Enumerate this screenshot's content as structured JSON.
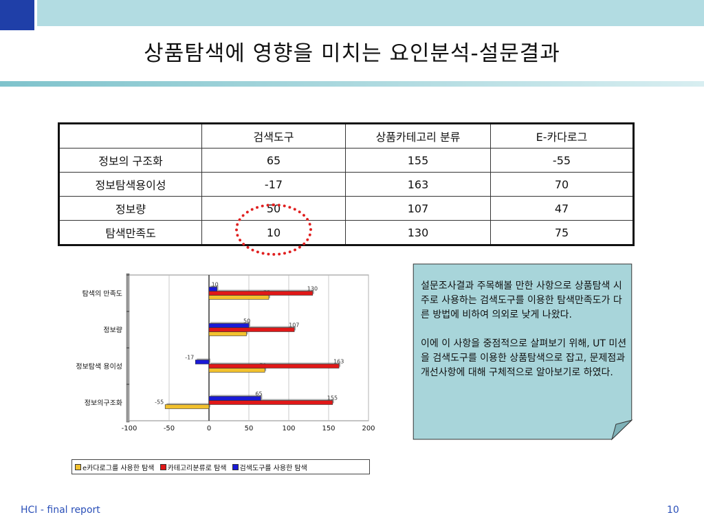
{
  "title": "상품탐색에 영향을 미치는 요인분석-설문결과",
  "table": {
    "headers": [
      "",
      "검색도구",
      "상품카테고리 분류",
      "E-카다로그"
    ],
    "rows": [
      [
        "정보의 구조화",
        "65",
        "155",
        "-55"
      ],
      [
        "정보탐색용이성",
        "-17",
        "163",
        "70"
      ],
      [
        "정보량",
        "50",
        "107",
        "47"
      ],
      [
        "탐색만족도",
        "10",
        "130",
        "75"
      ]
    ]
  },
  "note": {
    "paragraph1": "설문조사결과 주목해볼 만한 사항으로 상품탐색 시 주로 사용하는 검색도구를 이용한 탐색만족도가 다른 방법에 비하여 의외로 낮게 나왔다.",
    "paragraph2": "이에 이 사항을 중점적으로 살펴보기 위해, UT 미션을 검색도구를 이용한 상품탐색으로 잡고, 문제점과 개선사항에 대해 구체적으로 알아보기로 하였다."
  },
  "footer": {
    "left": "HCI - final report",
    "page": "10"
  },
  "chart_data": {
    "type": "bar",
    "orientation": "horizontal",
    "categories": [
      "정보의구조화",
      "정보탐색 용이성",
      "정보량",
      "탐색의 만족도"
    ],
    "series": [
      {
        "name": "e카다로그를 사용한 탐색",
        "color": "#f2c12e",
        "values": [
          -55,
          70,
          47,
          75
        ]
      },
      {
        "name": "카테고리분류로 탐색",
        "color": "#e01818",
        "values": [
          155,
          163,
          107,
          130
        ]
      },
      {
        "name": "검색도구를 사용한 탐색",
        "color": "#1a1ad6",
        "values": [
          65,
          -17,
          50,
          10
        ]
      }
    ],
    "xlim": [
      -100,
      200
    ],
    "xticks": [
      "-100",
      "-50",
      "0",
      "50",
      "100",
      "150",
      "200"
    ],
    "grid": true,
    "legend": "bottom"
  }
}
